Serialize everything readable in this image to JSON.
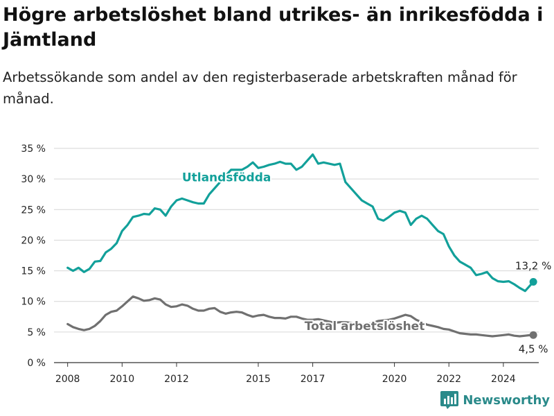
{
  "title": "Högre arbetslöshet bland utrikes- än inrikesfödda i Jämtland",
  "subtitle": "Arbetssökande som andel av den registerbaserade arbetskraften månad för månad.",
  "brand": {
    "name": "Newsworthy"
  },
  "colors": {
    "utlandsfodda": "#12a09a",
    "total": "#707070",
    "grid": "#d6d6d6",
    "axis": "#333333"
  },
  "chart_data": {
    "type": "line",
    "ylim": [
      0,
      35
    ],
    "yticks": [
      0,
      5,
      10,
      15,
      20,
      25,
      30,
      35
    ],
    "ytick_labels": [
      "0 %",
      "5 %",
      "10 %",
      "15 %",
      "20 %",
      "25 %",
      "30 %",
      "35 %"
    ],
    "xlim": [
      2007.5,
      2025.3
    ],
    "xticks": [
      2008,
      2010,
      2012,
      2015,
      2017,
      2020,
      2022,
      2024
    ],
    "xtick_labels": [
      "2008",
      "2010",
      "2012",
      "2015",
      "2017",
      "2020",
      "2022",
      "2024"
    ],
    "series": [
      {
        "name": "Utlandsfödda",
        "end_label": "13,2 %",
        "points": [
          [
            2008.0,
            15.5
          ],
          [
            2008.2,
            15.0
          ],
          [
            2008.4,
            15.5
          ],
          [
            2008.6,
            14.8
          ],
          [
            2008.8,
            15.3
          ],
          [
            2009.0,
            16.5
          ],
          [
            2009.2,
            16.6
          ],
          [
            2009.4,
            18.0
          ],
          [
            2009.6,
            18.6
          ],
          [
            2009.8,
            19.5
          ],
          [
            2010.0,
            21.5
          ],
          [
            2010.2,
            22.5
          ],
          [
            2010.4,
            23.8
          ],
          [
            2010.6,
            24.0
          ],
          [
            2010.8,
            24.3
          ],
          [
            2011.0,
            24.2
          ],
          [
            2011.2,
            25.2
          ],
          [
            2011.4,
            25.0
          ],
          [
            2011.6,
            24.0
          ],
          [
            2011.8,
            25.5
          ],
          [
            2012.0,
            26.5
          ],
          [
            2012.2,
            26.8
          ],
          [
            2012.4,
            26.5
          ],
          [
            2012.6,
            26.2
          ],
          [
            2012.8,
            26.0
          ],
          [
            2013.0,
            26.0
          ],
          [
            2013.2,
            27.5
          ],
          [
            2013.4,
            28.5
          ],
          [
            2013.6,
            29.5
          ],
          [
            2013.8,
            30.5
          ],
          [
            2014.0,
            31.5
          ],
          [
            2014.2,
            31.5
          ],
          [
            2014.4,
            31.5
          ],
          [
            2014.6,
            32.0
          ],
          [
            2014.8,
            32.7
          ],
          [
            2015.0,
            31.8
          ],
          [
            2015.2,
            32.0
          ],
          [
            2015.4,
            32.3
          ],
          [
            2015.6,
            32.5
          ],
          [
            2015.8,
            32.8
          ],
          [
            2016.0,
            32.5
          ],
          [
            2016.2,
            32.5
          ],
          [
            2016.4,
            31.5
          ],
          [
            2016.6,
            32.0
          ],
          [
            2016.8,
            33.0
          ],
          [
            2017.0,
            34.0
          ],
          [
            2017.2,
            32.5
          ],
          [
            2017.4,
            32.7
          ],
          [
            2017.6,
            32.5
          ],
          [
            2017.8,
            32.3
          ],
          [
            2018.0,
            32.5
          ],
          [
            2018.2,
            29.5
          ],
          [
            2018.4,
            28.5
          ],
          [
            2018.6,
            27.5
          ],
          [
            2018.8,
            26.5
          ],
          [
            2019.0,
            26.0
          ],
          [
            2019.2,
            25.5
          ],
          [
            2019.4,
            23.5
          ],
          [
            2019.6,
            23.2
          ],
          [
            2019.8,
            23.8
          ],
          [
            2020.0,
            24.5
          ],
          [
            2020.2,
            24.8
          ],
          [
            2020.4,
            24.5
          ],
          [
            2020.6,
            22.5
          ],
          [
            2020.8,
            23.5
          ],
          [
            2021.0,
            24.0
          ],
          [
            2021.2,
            23.5
          ],
          [
            2021.4,
            22.5
          ],
          [
            2021.6,
            21.5
          ],
          [
            2021.8,
            21.0
          ],
          [
            2022.0,
            19.0
          ],
          [
            2022.2,
            17.5
          ],
          [
            2022.4,
            16.5
          ],
          [
            2022.6,
            16.0
          ],
          [
            2022.8,
            15.5
          ],
          [
            2023.0,
            14.3
          ],
          [
            2023.2,
            14.5
          ],
          [
            2023.4,
            14.8
          ],
          [
            2023.6,
            13.8
          ],
          [
            2023.8,
            13.3
          ],
          [
            2024.0,
            13.2
          ],
          [
            2024.2,
            13.3
          ],
          [
            2024.4,
            12.8
          ],
          [
            2024.6,
            12.2
          ],
          [
            2024.8,
            11.7
          ],
          [
            2025.0,
            12.7
          ],
          [
            2025.1,
            13.2
          ]
        ]
      },
      {
        "name": "Total arbetslöshet",
        "end_label": "4,5 %",
        "points": [
          [
            2008.0,
            6.3
          ],
          [
            2008.2,
            5.8
          ],
          [
            2008.4,
            5.5
          ],
          [
            2008.6,
            5.3
          ],
          [
            2008.8,
            5.5
          ],
          [
            2009.0,
            6.0
          ],
          [
            2009.2,
            6.8
          ],
          [
            2009.4,
            7.8
          ],
          [
            2009.6,
            8.3
          ],
          [
            2009.8,
            8.5
          ],
          [
            2010.0,
            9.2
          ],
          [
            2010.2,
            10.0
          ],
          [
            2010.4,
            10.8
          ],
          [
            2010.6,
            10.5
          ],
          [
            2010.8,
            10.1
          ],
          [
            2011.0,
            10.2
          ],
          [
            2011.2,
            10.5
          ],
          [
            2011.4,
            10.3
          ],
          [
            2011.6,
            9.5
          ],
          [
            2011.8,
            9.1
          ],
          [
            2012.0,
            9.2
          ],
          [
            2012.2,
            9.5
          ],
          [
            2012.4,
            9.3
          ],
          [
            2012.6,
            8.8
          ],
          [
            2012.8,
            8.5
          ],
          [
            2013.0,
            8.5
          ],
          [
            2013.2,
            8.8
          ],
          [
            2013.4,
            8.9
          ],
          [
            2013.6,
            8.3
          ],
          [
            2013.8,
            8.0
          ],
          [
            2014.0,
            8.2
          ],
          [
            2014.2,
            8.3
          ],
          [
            2014.4,
            8.2
          ],
          [
            2014.6,
            7.8
          ],
          [
            2014.8,
            7.5
          ],
          [
            2015.0,
            7.7
          ],
          [
            2015.2,
            7.8
          ],
          [
            2015.4,
            7.5
          ],
          [
            2015.6,
            7.3
          ],
          [
            2015.8,
            7.3
          ],
          [
            2016.0,
            7.2
          ],
          [
            2016.2,
            7.5
          ],
          [
            2016.4,
            7.5
          ],
          [
            2016.6,
            7.2
          ],
          [
            2016.8,
            7.0
          ],
          [
            2017.0,
            7.0
          ],
          [
            2017.2,
            7.1
          ],
          [
            2017.4,
            6.9
          ],
          [
            2017.6,
            6.7
          ],
          [
            2017.8,
            6.5
          ],
          [
            2018.0,
            6.6
          ],
          [
            2018.2,
            6.6
          ],
          [
            2018.4,
            6.5
          ],
          [
            2018.6,
            6.3
          ],
          [
            2018.8,
            6.2
          ],
          [
            2019.0,
            6.3
          ],
          [
            2019.2,
            6.5
          ],
          [
            2019.4,
            6.8
          ],
          [
            2019.6,
            6.9
          ],
          [
            2019.8,
            7.0
          ],
          [
            2020.0,
            7.2
          ],
          [
            2020.2,
            7.5
          ],
          [
            2020.4,
            7.8
          ],
          [
            2020.6,
            7.6
          ],
          [
            2020.8,
            7.0
          ],
          [
            2021.0,
            6.6
          ],
          [
            2021.2,
            6.2
          ],
          [
            2021.4,
            6.0
          ],
          [
            2021.6,
            5.8
          ],
          [
            2021.8,
            5.5
          ],
          [
            2022.0,
            5.4
          ],
          [
            2022.2,
            5.1
          ],
          [
            2022.4,
            4.8
          ],
          [
            2022.6,
            4.7
          ],
          [
            2022.8,
            4.6
          ],
          [
            2023.0,
            4.6
          ],
          [
            2023.2,
            4.5
          ],
          [
            2023.4,
            4.4
          ],
          [
            2023.6,
            4.3
          ],
          [
            2023.8,
            4.4
          ],
          [
            2024.0,
            4.5
          ],
          [
            2024.2,
            4.6
          ],
          [
            2024.4,
            4.4
          ],
          [
            2024.6,
            4.3
          ],
          [
            2024.8,
            4.4
          ],
          [
            2025.0,
            4.5
          ],
          [
            2025.1,
            4.5
          ]
        ]
      }
    ]
  }
}
